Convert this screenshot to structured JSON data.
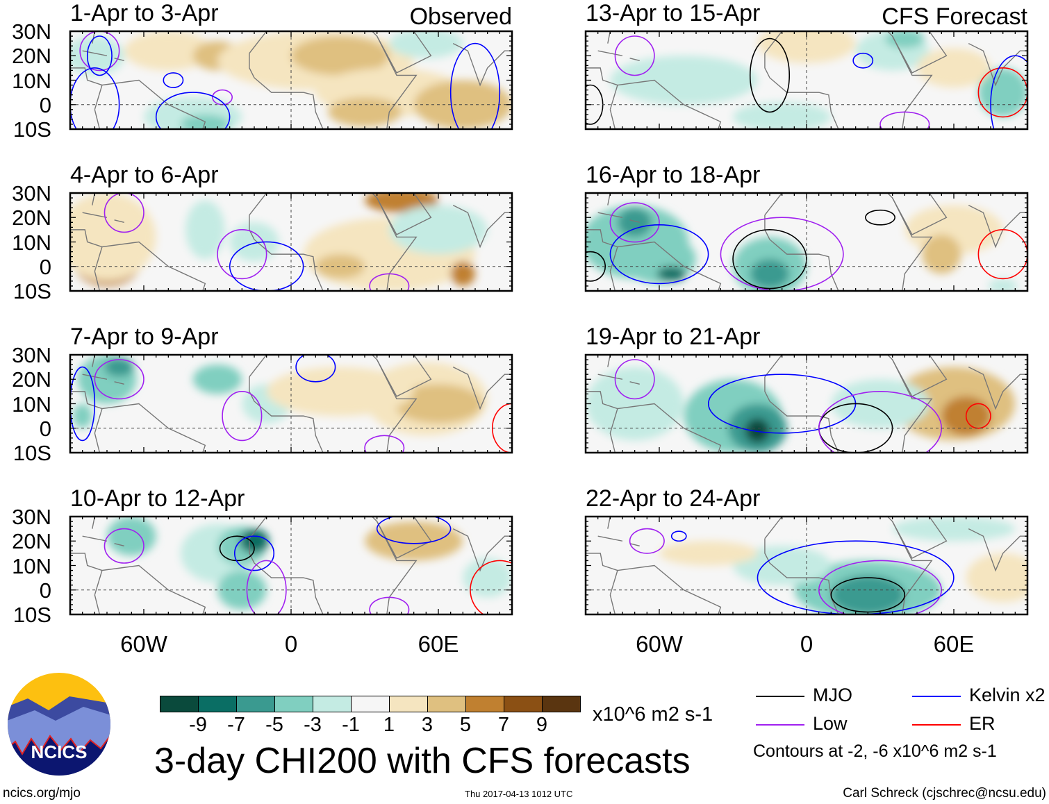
{
  "chart_data": {
    "type": "heatmap",
    "title": "3-day CHI200 with CFS forecasts",
    "units": "x10^6 m2 s-1",
    "lat_ticks": [
      "30N",
      "20N",
      "10N",
      "0",
      "10S"
    ],
    "lon_ticks": [
      "60W",
      "0",
      "60E"
    ],
    "lat_range": [
      -10,
      30
    ],
    "lon_range": [
      -90,
      90
    ],
    "panel_labels": {
      "observed": "Observed",
      "forecast": "CFS Forecast"
    },
    "panels": [
      {
        "title": "1-Apr to 3-Apr",
        "column": "observed"
      },
      {
        "title": "4-Apr to 6-Apr",
        "column": "observed"
      },
      {
        "title": "7-Apr to 9-Apr",
        "column": "observed"
      },
      {
        "title": "10-Apr to 12-Apr",
        "column": "observed"
      },
      {
        "title": "13-Apr to 15-Apr",
        "column": "forecast"
      },
      {
        "title": "16-Apr to 18-Apr",
        "column": "forecast"
      },
      {
        "title": "19-Apr to 21-Apr",
        "column": "forecast"
      },
      {
        "title": "22-Apr to 24-Apr",
        "column": "forecast"
      }
    ],
    "colorbar": {
      "labels": [
        "-9",
        "-7",
        "-5",
        "-3",
        "-1",
        "1",
        "3",
        "5",
        "7",
        "9"
      ],
      "colors": [
        "#0a4a3c",
        "#0a6e64",
        "#3a9a90",
        "#80cfc0",
        "#c4ebe3",
        "#f6f6f6",
        "#f5e5c0",
        "#dfc080",
        "#c08030",
        "#8b5014",
        "#5a3510"
      ]
    },
    "legend": {
      "items": [
        {
          "label": "MJO",
          "color": "#000000"
        },
        {
          "label": "Kelvin x2",
          "color": "#0000ff"
        },
        {
          "label": "Low",
          "color": "#a020f0"
        },
        {
          "label": "ER",
          "color": "#ff0000"
        }
      ],
      "contours_note": "Contours at -2, -6 x10^6 m2 s-1"
    }
  },
  "footer": {
    "logo_text": "NCICS",
    "url": "ncics.org/mjo",
    "timestamp": "Thu 2017-04-13 1012 UTC",
    "credit": "Carl Schreck (cjschrec@ncsu.edu)"
  }
}
